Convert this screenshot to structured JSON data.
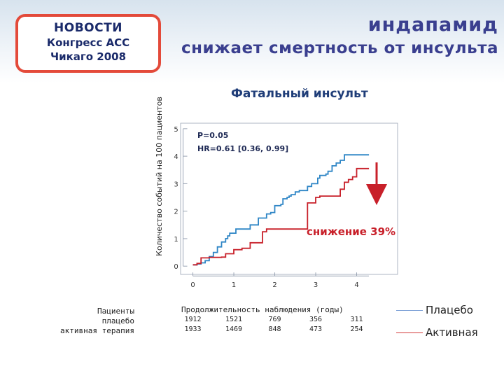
{
  "badge": {
    "line1": "НОВОСТИ",
    "line2": "Конгресс АСС",
    "line3": "Чикаго 2008"
  },
  "headline": {
    "line1": "индапамид",
    "line2": "снижает смертность от инсульта"
  },
  "colors": {
    "placebo": "#2f86c6",
    "active": "#c8202a",
    "accent_red": "#e34a3a",
    "headline": "#3a3f8f"
  },
  "chart_data": {
    "type": "line",
    "title": "Фатальный инсульт",
    "xlabel": "Продолжительность наблюдения (годы)",
    "ylabel": "Количество событий на 100 пациентов",
    "xlim": [
      -0.3,
      5.0
    ],
    "ylim": [
      -0.3,
      5.2
    ],
    "x_ticks": [
      "0",
      "1",
      "2",
      "3",
      "4"
    ],
    "y_ticks": [
      "0",
      "1",
      "2",
      "3",
      "4",
      "5"
    ],
    "grid": false,
    "annotations": {
      "p_value": "P=0.05",
      "hr": "HR=0.61 [0.36, 0.99]",
      "reduction": "снижение 39%"
    },
    "series": [
      {
        "name": "Плацебо",
        "color": "#2f86c6",
        "x": [
          0.0,
          0.1,
          0.2,
          0.3,
          0.4,
          0.5,
          0.6,
          0.7,
          0.8,
          0.85,
          0.9,
          1.0,
          1.05,
          1.1,
          1.2,
          1.3,
          1.4,
          1.5,
          1.6,
          1.65,
          1.75,
          1.8,
          1.9,
          2.0,
          2.1,
          2.15,
          2.2,
          2.3,
          2.35,
          2.4,
          2.5,
          2.6,
          2.7,
          2.8,
          2.9,
          3.0,
          3.05,
          3.1,
          3.2,
          3.25,
          3.3,
          3.4,
          3.5,
          3.6,
          3.7,
          3.8,
          3.9,
          4.0,
          4.1,
          4.2,
          4.3
        ],
        "y": [
          0.05,
          0.08,
          0.12,
          0.2,
          0.35,
          0.5,
          0.7,
          0.88,
          1.0,
          1.1,
          1.2,
          1.2,
          1.35,
          1.35,
          1.35,
          1.35,
          1.5,
          1.5,
          1.75,
          1.75,
          1.75,
          1.9,
          1.95,
          2.2,
          2.2,
          2.25,
          2.45,
          2.5,
          2.55,
          2.6,
          2.7,
          2.75,
          2.75,
          2.9,
          3.0,
          3.0,
          3.2,
          3.3,
          3.3,
          3.35,
          3.45,
          3.65,
          3.75,
          3.85,
          4.05,
          4.05,
          4.05,
          4.05,
          4.05,
          4.05,
          4.05
        ]
      },
      {
        "name": "Активная",
        "color": "#c8202a",
        "x": [
          0.0,
          0.1,
          0.2,
          0.3,
          0.4,
          0.5,
          0.6,
          0.7,
          0.8,
          0.9,
          1.0,
          1.1,
          1.2,
          1.3,
          1.4,
          1.5,
          1.6,
          1.7,
          1.8,
          1.9,
          2.0,
          2.1,
          2.2,
          2.3,
          2.4,
          2.5,
          2.6,
          2.7,
          2.8,
          2.9,
          3.0,
          3.1,
          3.2,
          3.3,
          3.4,
          3.5,
          3.6,
          3.7,
          3.8,
          3.9,
          4.0,
          4.1,
          4.2,
          4.3
        ],
        "y": [
          0.05,
          0.1,
          0.3,
          0.3,
          0.32,
          0.32,
          0.32,
          0.33,
          0.45,
          0.45,
          0.6,
          0.6,
          0.65,
          0.65,
          0.85,
          0.85,
          0.85,
          1.25,
          1.35,
          1.35,
          1.35,
          1.35,
          1.35,
          1.35,
          1.35,
          1.35,
          1.35,
          1.35,
          2.3,
          2.3,
          2.5,
          2.55,
          2.55,
          2.55,
          2.55,
          2.55,
          2.8,
          3.05,
          3.15,
          3.25,
          3.55,
          3.55,
          3.55,
          3.55
        ]
      }
    ]
  },
  "risk_table": {
    "label_line1": "Пациенты",
    "label_line2": "плацебо",
    "label_line3": "активная терапия",
    "placebo": [
      "1912",
      "1521",
      "769",
      "356",
      "311"
    ],
    "active": [
      "1933",
      "1469",
      "848",
      "473",
      "254"
    ]
  },
  "legend": {
    "placebo": "Плацебо",
    "active": "Активная"
  }
}
